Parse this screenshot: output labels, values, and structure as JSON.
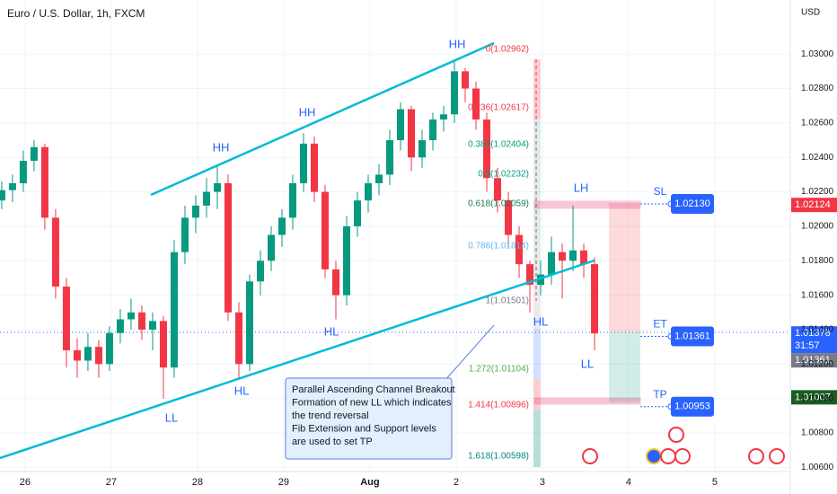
{
  "chart_data": {
    "type": "candlestick",
    "title": "Euro / U.S. Dollar, 1h, FXCM",
    "y_unit": "USD",
    "up_color": "#089981",
    "down_color": "#f23645",
    "grid": true,
    "xlim": [
      -0.29,
      8.875
    ],
    "xticks": [
      {
        "value": 0,
        "label": "26"
      },
      {
        "value": 1,
        "label": "27"
      },
      {
        "value": 2,
        "label": "28"
      },
      {
        "value": 3,
        "label": "29"
      },
      {
        "value": 4,
        "label": "Aug"
      },
      {
        "value": 5,
        "label": "2"
      },
      {
        "value": 6,
        "label": "3"
      },
      {
        "value": 7,
        "label": "4"
      },
      {
        "value": 8,
        "label": "5"
      }
    ],
    "ylim": [
      1.00576,
      1.03314
    ],
    "yticks": [
      {
        "value": 1.03,
        "label": "1.03000"
      },
      {
        "value": 1.028,
        "label": "1.02800"
      },
      {
        "value": 1.026,
        "label": "1.02600"
      },
      {
        "value": 1.024,
        "label": "1.02400"
      },
      {
        "value": 1.022,
        "label": "1.02200"
      },
      {
        "value": 1.02,
        "label": "1.02000"
      },
      {
        "value": 1.018,
        "label": "1.01800"
      },
      {
        "value": 1.016,
        "label": "1.01600"
      },
      {
        "value": 1.014,
        "label": "1.01400"
      },
      {
        "value": 1.012,
        "label": "1.01200"
      },
      {
        "value": 1.01,
        "label": "1.01000"
      },
      {
        "value": 1.008,
        "label": "1.00800"
      },
      {
        "value": 1.006,
        "label": "1.00600"
      }
    ],
    "x": [
      -0.27,
      -0.145,
      -0.02,
      0.105,
      0.23,
      0.355,
      0.48,
      0.605,
      0.73,
      0.855,
      0.98,
      1.105,
      1.23,
      1.355,
      1.48,
      1.605,
      1.73,
      1.855,
      1.98,
      2.105,
      2.23,
      2.355,
      2.48,
      2.605,
      2.73,
      2.855,
      2.98,
      3.105,
      3.23,
      3.355,
      3.48,
      3.605,
      3.73,
      3.855,
      3.98,
      4.105,
      4.23,
      4.355,
      4.48,
      4.605,
      4.73,
      4.855,
      4.98,
      5.105,
      5.23,
      5.355,
      5.48,
      5.605,
      5.73,
      5.855,
      5.98,
      6.105,
      6.23,
      6.355,
      6.48,
      6.605
    ],
    "open": [
      1.0215,
      1.0221,
      1.0225,
      1.0238,
      1.0246,
      1.0205,
      1.0165,
      1.0128,
      1.0122,
      1.013,
      1.012,
      1.0138,
      1.0146,
      1.015,
      1.014,
      1.0145,
      1.0118,
      1.0185,
      1.0205,
      1.0212,
      1.022,
      1.0225,
      1.015,
      1.012,
      1.0168,
      1.018,
      1.0195,
      1.0205,
      1.0225,
      1.0248,
      1.022,
      1.0175,
      1.016,
      1.02,
      1.0215,
      1.0225,
      1.023,
      1.025,
      1.0268,
      1.024,
      1.025,
      1.0262,
      1.0265,
      1.029,
      1.028,
      1.0262,
      1.0228,
      1.0215,
      1.0195,
      1.0178,
      1.0166,
      1.0172,
      1.0185,
      1.018,
      1.0186,
      1.0178
    ],
    "high": [
      1.0226,
      1.023,
      1.0244,
      1.025,
      1.0248,
      1.021,
      1.017,
      1.0135,
      1.0138,
      1.0134,
      1.0142,
      1.0152,
      1.0158,
      1.0154,
      1.015,
      1.0148,
      1.0192,
      1.0212,
      1.0218,
      1.0228,
      1.0235,
      1.023,
      1.0156,
      1.0172,
      1.0186,
      1.02,
      1.021,
      1.023,
      1.0254,
      1.0252,
      1.0224,
      1.018,
      1.0206,
      1.022,
      1.023,
      1.0236,
      1.0256,
      1.0272,
      1.027,
      1.0256,
      1.0266,
      1.027,
      1.0296,
      1.0292,
      1.0284,
      1.0266,
      1.0234,
      1.022,
      1.02,
      1.018,
      1.018,
      1.0194,
      1.019,
      1.0212,
      1.019,
      1.0182
    ],
    "low": [
      1.021,
      1.0214,
      1.022,
      1.0232,
      1.0198,
      1.0158,
      1.0118,
      1.0112,
      1.0116,
      1.0112,
      1.0116,
      1.0132,
      1.014,
      1.0134,
      1.0128,
      1.01,
      1.0112,
      1.0178,
      1.0196,
      1.0205,
      1.021,
      1.0145,
      1.0112,
      1.0116,
      1.016,
      1.0174,
      1.0188,
      1.0198,
      1.022,
      1.0214,
      1.017,
      1.0146,
      1.0154,
      1.0194,
      1.0208,
      1.0218,
      1.0224,
      1.0244,
      1.0232,
      1.0234,
      1.0244,
      1.0255,
      1.026,
      1.0272,
      1.0256,
      1.022,
      1.0208,
      1.0188,
      1.017,
      1.015,
      1.016,
      1.0166,
      1.0158,
      1.0174,
      1.017,
      1.0128
    ],
    "close": [
      1.0221,
      1.0225,
      1.0238,
      1.0246,
      1.0205,
      1.0165,
      1.0128,
      1.0122,
      1.013,
      1.012,
      1.0138,
      1.0146,
      1.015,
      1.014,
      1.0145,
      1.0118,
      1.0185,
      1.0205,
      1.0212,
      1.022,
      1.0225,
      1.015,
      1.012,
      1.0168,
      1.018,
      1.0195,
      1.0205,
      1.0225,
      1.0248,
      1.022,
      1.0175,
      1.016,
      1.02,
      1.0215,
      1.0225,
      1.023,
      1.025,
      1.0268,
      1.024,
      1.025,
      1.0262,
      1.0265,
      1.029,
      1.028,
      1.0262,
      1.0228,
      1.0215,
      1.0195,
      1.0178,
      1.0166,
      1.0172,
      1.0185,
      1.018,
      1.0186,
      1.0178,
      1.01378
    ],
    "swing_labels": [
      "HH",
      "HH",
      "HH",
      "HL",
      "HL",
      "LL",
      "LH",
      "HL",
      "LL"
    ],
    "fib_levels": [
      "0(1.02962)",
      "0.236(1.02617)",
      "0.382(1.02404)",
      "0.5(1.02232)",
      "0.618(1.02059)",
      "0.786(1.01814)",
      "1(1.01501)",
      "1.272(1.01104)",
      "1.414(1.00896)",
      "1.618(1.00598)"
    ],
    "trade_levels": [
      {
        "name": "SL",
        "value": 1.0213,
        "label": "1.02130"
      },
      {
        "name": "ET",
        "value": 1.01361,
        "label": "1.01361"
      },
      {
        "name": "TP",
        "value": 1.00953,
        "label": "1.00953"
      }
    ],
    "price_tags": [
      {
        "value": 1.02124,
        "label": "1.02124",
        "color": "#f23645"
      },
      {
        "value": 1.01378,
        "label": "1.01378",
        "color": "#2962ff",
        "countdown": "31:57"
      },
      {
        "value": 1.01361,
        "label": "1.01361",
        "color": "#787b86"
      },
      {
        "value": 1.01007,
        "label": "1.01007",
        "color": "#1b5e20"
      }
    ],
    "note": [
      "Parallel Ascending Channel Breakout",
      "Formation of new LL which indicates",
      "the trend reversal",
      "Fib Extension and Support levels",
      "are used to set TP"
    ]
  }
}
